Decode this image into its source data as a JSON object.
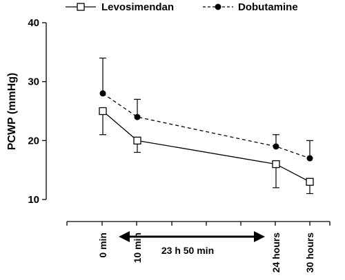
{
  "chart_data": {
    "type": "line",
    "title": "",
    "ylabel": "PCWP (mmHg)",
    "xlabel": "",
    "ylim": [
      10,
      40
    ],
    "y_ticks": [
      10,
      20,
      30,
      40
    ],
    "categories": [
      "0 min",
      "10 min",
      "24 hours",
      "30 hours"
    ],
    "annotation": "23 h 50 min",
    "legend_position": "top",
    "grid": false,
    "series": [
      {
        "name": "Levosimendan",
        "marker": "open-square",
        "line_style": "solid",
        "color": "#000000",
        "values": [
          25,
          20,
          16,
          13
        ],
        "error_lower": [
          21,
          18,
          12,
          11
        ],
        "error_upper": [
          25,
          20,
          16,
          13
        ]
      },
      {
        "name": "Dobutamine",
        "marker": "filled-circle",
        "line_style": "dashed",
        "color": "#000000",
        "values": [
          28,
          24,
          19,
          17
        ],
        "error_lower": [
          28,
          24,
          19,
          17
        ],
        "error_upper": [
          34,
          27,
          21,
          20
        ]
      }
    ]
  }
}
